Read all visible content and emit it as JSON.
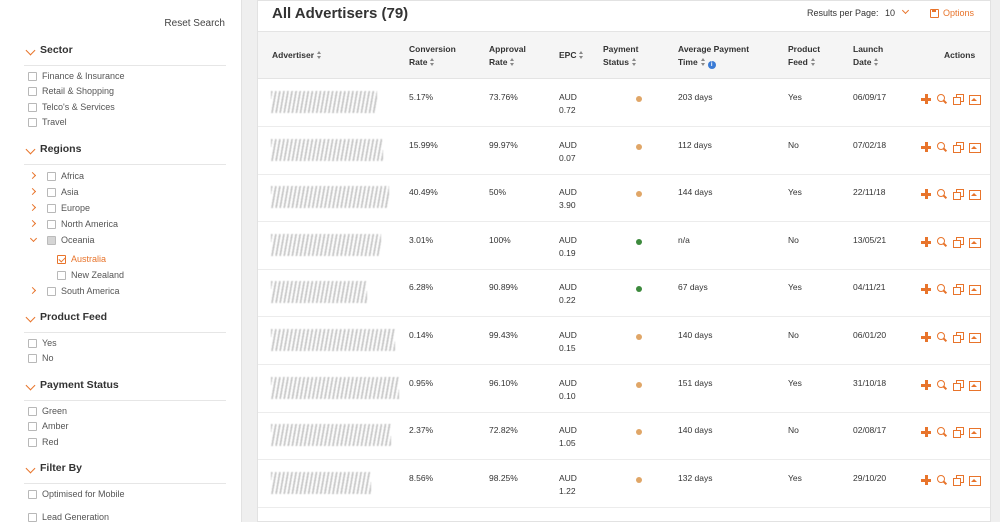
{
  "sidebar": {
    "reset_label": "Reset Search",
    "sector": {
      "title": "Sector",
      "options": [
        "Finance & Insurance",
        "Retail & Shopping",
        "Telco's & Services",
        "Travel"
      ]
    },
    "regions": {
      "title": "Regions",
      "options": [
        "Africa",
        "Asia",
        "Europe",
        "North America",
        "Oceania"
      ],
      "sub_options": [
        "Australia",
        "New Zealand"
      ],
      "last_option": "South America"
    },
    "product_feed": {
      "title": "Product Feed",
      "options": [
        "Yes",
        "No"
      ]
    },
    "payment_status": {
      "title": "Payment Status",
      "options": [
        "Green",
        "Amber",
        "Red"
      ]
    },
    "filter_by": {
      "title": "Filter By",
      "options": [
        "Optimised for Mobile",
        "Lead Generation"
      ]
    }
  },
  "main": {
    "title": "All Advertisers (79)",
    "results_label": "Results per Page:",
    "results_value": "10",
    "options_label": "Options",
    "columns": {
      "advertiser": "Advertiser",
      "conv_1": "Conversion",
      "conv_2": "Rate",
      "appr_1": "Approval",
      "appr_2": "Rate",
      "epc": "EPC",
      "pay_1": "Payment",
      "pay_2": "Status",
      "avg_1": "Average Payment",
      "avg_2": "Time",
      "feed_1": "Product",
      "feed_2": "Feed",
      "launch_1": "Launch",
      "launch_2": "Date",
      "actions": "Actions"
    },
    "rows": [
      {
        "conversion": "5.17%",
        "approval": "73.76%",
        "epc_cur": "AUD",
        "epc_val": "0.72",
        "status": "amber",
        "avg_time": "203 days",
        "feed": "Yes",
        "launch": "06/09/17"
      },
      {
        "conversion": "15.99%",
        "approval": "99.97%",
        "epc_cur": "AUD",
        "epc_val": "0.07",
        "status": "amber",
        "avg_time": "112 days",
        "feed": "No",
        "launch": "07/02/18"
      },
      {
        "conversion": "40.49%",
        "approval": "50%",
        "epc_cur": "AUD",
        "epc_val": "3.90",
        "status": "amber",
        "avg_time": "144 days",
        "feed": "Yes",
        "launch": "22/11/18"
      },
      {
        "conversion": "3.01%",
        "approval": "100%",
        "epc_cur": "AUD",
        "epc_val": "0.19",
        "status": "green",
        "avg_time": "n/a",
        "feed": "No",
        "launch": "13/05/21"
      },
      {
        "conversion": "6.28%",
        "approval": "90.89%",
        "epc_cur": "AUD",
        "epc_val": "0.22",
        "status": "green",
        "avg_time": "67 days",
        "feed": "Yes",
        "launch": "04/11/21"
      },
      {
        "conversion": "0.14%",
        "approval": "99.43%",
        "epc_cur": "AUD",
        "epc_val": "0.15",
        "status": "amber",
        "avg_time": "140 days",
        "feed": "No",
        "launch": "06/01/20"
      },
      {
        "conversion": "0.95%",
        "approval": "96.10%",
        "epc_cur": "AUD",
        "epc_val": "0.10",
        "status": "amber",
        "avg_time": "151 days",
        "feed": "Yes",
        "launch": "31/10/18"
      },
      {
        "conversion": "2.37%",
        "approval": "72.82%",
        "epc_cur": "AUD",
        "epc_val": "1.05",
        "status": "amber",
        "avg_time": "140 days",
        "feed": "No",
        "launch": "02/08/17"
      },
      {
        "conversion": "8.56%",
        "approval": "98.25%",
        "epc_cur": "AUD",
        "epc_val": "1.22",
        "status": "amber",
        "avg_time": "132 days",
        "feed": "Yes",
        "launch": "29/10/20"
      }
    ]
  },
  "icons": {
    "sort": "sort-icon",
    "info": "info-icon",
    "add": "plus-icon",
    "view": "search-icon",
    "copy": "copy-icon",
    "image": "image-icon",
    "options": "save-icon"
  },
  "colors": {
    "accent": "#e8742b",
    "amber": "#e0a667",
    "green": "#3d8a3d"
  }
}
